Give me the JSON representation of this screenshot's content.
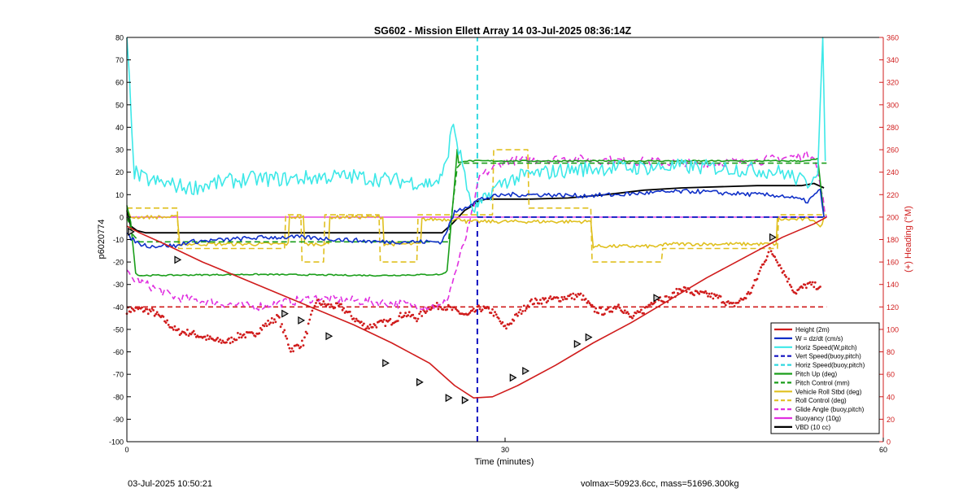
{
  "chart_data": {
    "type": "line",
    "title": "SG602 - Mission Ellett Array 14 03-Jul-2025 08:36:14Z",
    "xlabel": "Time (minutes)",
    "ylabel": "p6020774",
    "y2label": "(+) Heading (°M)",
    "xlim": [
      0,
      60
    ],
    "ylim": [
      -100,
      80
    ],
    "y2lim": [
      0,
      360
    ],
    "x_ticks": [
      0,
      30,
      60
    ],
    "y_ticks": [
      -100,
      -90,
      -80,
      -70,
      -60,
      -50,
      -40,
      -30,
      -20,
      -10,
      0,
      10,
      20,
      30,
      40,
      50,
      60,
      70,
      80
    ],
    "y2_ticks": [
      0,
      20,
      40,
      60,
      80,
      100,
      120,
      140,
      160,
      180,
      200,
      220,
      240,
      260,
      280,
      300,
      320,
      340,
      360
    ],
    "grid": false,
    "legend_position": "bottom-right",
    "vertical_lines": [
      {
        "x": 27.8,
        "color": "#1010c0",
        "style": "dashed",
        "ymin": -100,
        "ymax": 0
      },
      {
        "x": 27.8,
        "color": "#30d8e0",
        "style": "dashed",
        "ymin": 0,
        "ymax": 80
      }
    ],
    "series": [
      {
        "name": "Height (2m)",
        "color": "#d01c1c",
        "style": "solid",
        "width": 1.6,
        "x": [
          0,
          1,
          3,
          6,
          9,
          12,
          15,
          18,
          21,
          24,
          26,
          27.5,
          29,
          31,
          34,
          37,
          40,
          43,
          46,
          49,
          52,
          54.5,
          55.5
        ],
        "y": [
          -4,
          -7,
          -12,
          -20,
          -27,
          -34,
          -41,
          -48,
          -56,
          -65,
          -75,
          -80.5,
          -80,
          -75,
          -66,
          -56,
          -47,
          -37,
          -27,
          -18,
          -9,
          -3,
          0
        ],
        "markers_x": [
          0.3,
          4,
          12.5,
          13.8,
          16,
          20.5,
          23.2,
          25.5,
          26.8,
          30.6,
          31.6,
          35.7,
          36.6,
          42,
          51.2
        ],
        "markers_y": [
          -6.5,
          -19,
          -43,
          -46,
          -53,
          -65,
          -73.5,
          -80.5,
          -81.5,
          -71.5,
          -68.5,
          -56.5,
          -53.5,
          -36,
          -9
        ]
      },
      {
        "name": "W = dz/dt (cm/s)",
        "color": "#1030c8",
        "style": "solid",
        "width": 1.6,
        "x": [
          0,
          0.5,
          1,
          2,
          3,
          4,
          4.5,
          5,
          8,
          11,
          14,
          17,
          20,
          23,
          25,
          25.3,
          26,
          27,
          28,
          30,
          33,
          36,
          39,
          42,
          45,
          48,
          50,
          52,
          54,
          55,
          55.3
        ],
        "y": [
          -8,
          -10,
          -12,
          -13,
          -12.5,
          -13,
          -11.5,
          -11,
          -10,
          -9,
          -9,
          -10,
          -11,
          -11,
          -11,
          -7,
          2,
          5,
          8,
          10,
          10,
          9.5,
          10,
          11,
          11.5,
          10.5,
          10,
          9.5,
          7,
          12,
          0
        ],
        "noise": 1.0
      },
      {
        "name": "Horiz Speed(W,pitch)",
        "color": "#3de8e8",
        "style": "solid",
        "width": 1.6,
        "x": [
          0,
          0.2,
          0.4,
          0.6,
          1,
          2,
          3,
          5,
          8,
          10,
          13,
          16,
          18,
          20,
          22,
          23,
          24,
          25,
          25.5,
          25.9,
          26.3,
          26.8,
          27.3,
          28,
          29,
          30,
          32,
          35,
          38,
          41,
          44,
          47,
          50,
          52,
          54,
          54.8,
          55,
          55.2,
          55.4
        ],
        "y": [
          80,
          60,
          40,
          20,
          18,
          16,
          15,
          13,
          16,
          17,
          17,
          18,
          18,
          17,
          16,
          15.5,
          15,
          17,
          30,
          42,
          30,
          20,
          3,
          5,
          12,
          16,
          19,
          21,
          22,
          22,
          22.5,
          22,
          21,
          20,
          15,
          22,
          50,
          80,
          25
        ],
        "noise": 3.5
      },
      {
        "name": "Vert Speed(buoy,pitch)",
        "color": "#1010c0",
        "style": "dashed",
        "width": 1.8,
        "x": [
          27.8,
          55.5
        ],
        "y": [
          0,
          0
        ]
      },
      {
        "name": "Horiz Speed(buoy,pitch)",
        "color": "#30d8e0",
        "style": "dashed",
        "width": 1.8,
        "x": [
          27.8,
          55.5
        ],
        "y": [
          0,
          0
        ]
      },
      {
        "name": "Pitch Up (deg)",
        "color": "#1a9e1a",
        "style": "solid",
        "width": 1.6,
        "x": [
          0,
          0.3,
          0.7,
          1,
          10,
          20,
          25,
          25.4,
          26.1,
          26.2,
          26.3,
          26.7,
          30,
          40,
          50,
          54,
          54.8,
          55.3
        ],
        "y": [
          5,
          -2,
          -25,
          -26,
          -25.5,
          -26,
          -25.5,
          -24,
          22,
          30,
          24,
          25,
          25,
          25,
          25,
          25,
          26,
          0
        ],
        "noise": 0.3
      },
      {
        "name": "Pitch Control (mm)",
        "color": "#1a9e1a",
        "style": "dashed",
        "width": 1.6,
        "x": [
          0,
          0.5,
          1,
          25.5,
          26.2,
          26.5,
          55.5
        ],
        "y": [
          0,
          -8,
          -11,
          -11,
          22,
          24,
          24
        ]
      },
      {
        "name": "Vehicle Roll Stbd (deg)",
        "color": "#e0c020",
        "style": "solid",
        "width": 1.6,
        "x": [
          0,
          0.3,
          4,
          4.2,
          12.8,
          12.9,
          14,
          14.1,
          16,
          16.1,
          20.3,
          20.4,
          23.3,
          23.4,
          26.8,
          26.9,
          36.8,
          37,
          42.5,
          42.6,
          51.5,
          51.6,
          54.5,
          55,
          55.3
        ],
        "y": [
          3,
          0,
          0,
          -12,
          -12,
          0,
          0,
          -12,
          -12,
          0,
          0,
          -12,
          -12,
          -1,
          -1,
          -2,
          -2,
          -13,
          -13,
          -12,
          -12,
          -1,
          -1,
          -5,
          0
        ],
        "noise": 0.8
      },
      {
        "name": "Roll Control (deg)",
        "color": "#e0c020",
        "style": "dashed",
        "width": 1.6,
        "x": [
          0,
          4,
          4.1,
          12.5,
          12.6,
          13.8,
          13.9,
          15.6,
          15.7,
          20,
          20.1,
          23,
          23.1,
          29,
          29.1,
          31.8,
          31.9,
          36.8,
          36.9,
          42.4,
          42.5,
          51.6,
          51.7,
          55.5
        ],
        "y": [
          4,
          4,
          -14,
          -14,
          1,
          1,
          -20,
          -20,
          1,
          1,
          -20,
          -20,
          1,
          1,
          30,
          30,
          4,
          4,
          -20,
          -20,
          -14,
          -14,
          1,
          1
        ]
      },
      {
        "name": "Glide Angle (buoy,pitch)",
        "color": "#e030e0",
        "style": "dashed",
        "width": 1.6,
        "x": [
          0,
          0.3,
          4,
          10,
          15,
          20,
          25,
          25.5,
          26.3,
          27.2,
          28,
          30,
          35,
          40,
          45,
          50,
          54.5,
          55.5
        ],
        "y": [
          -25,
          -27,
          -36,
          -40,
          -36,
          -38,
          -40,
          -35,
          -20,
          -3,
          18,
          25,
          26,
          25,
          24,
          25,
          28,
          0
        ],
        "noise": 2
      },
      {
        "name": "Buoyancy (10g)",
        "color": "#e030e0",
        "style": "solid",
        "width": 1.4,
        "x": [
          0,
          55.5
        ],
        "y": [
          0,
          0
        ]
      },
      {
        "name": "VBD (10 cc)",
        "color": "#000000",
        "style": "solid",
        "width": 1.8,
        "x": [
          0,
          0.3,
          0.8,
          1.5,
          4.5,
          25,
          25.8,
          26.8,
          27.4,
          27.8,
          28.5,
          30,
          32,
          35,
          38,
          41,
          44,
          50,
          52,
          53.5,
          54.5,
          55.3
        ],
        "y": [
          3,
          -4,
          -6,
          -7,
          -7,
          -7,
          -3,
          3,
          5,
          7,
          8,
          8,
          8,
          8.5,
          10,
          12,
          13,
          14,
          14,
          14,
          15,
          13
        ]
      }
    ],
    "heading_series": {
      "color": "#d01c1c",
      "x": [
        0,
        1,
        2,
        3,
        3.5,
        4,
        5,
        7,
        8,
        9,
        10,
        11,
        12,
        13,
        14,
        15,
        16,
        17,
        18,
        19,
        20,
        21,
        22,
        23,
        24,
        25,
        26,
        27,
        28,
        29,
        30,
        31,
        32,
        33,
        34,
        35,
        36,
        37,
        38,
        39,
        40,
        41,
        42,
        43,
        44,
        45,
        46,
        47,
        48,
        49,
        49.5,
        50,
        50.5,
        51,
        51.5,
        52,
        53,
        54,
        55
      ],
      "y": [
        117,
        118,
        116,
        108,
        103,
        98,
        97,
        90,
        89,
        95,
        95,
        104,
        111,
        82,
        88,
        125,
        121,
        120,
        110,
        102,
        105,
        107,
        114,
        110,
        120,
        121,
        117,
        112,
        119,
        116,
        101,
        113,
        124,
        126,
        127,
        129,
        130,
        118,
        115,
        122,
        110,
        117,
        128,
        127,
        137,
        132,
        131,
        128,
        121,
        128,
        134,
        146,
        160,
        170,
        164,
        153,
        133,
        140,
        138
      ],
      "noise": 3,
      "reference": 120
    }
  },
  "footer": {
    "left": "03-Jul-2025 10:50:21",
    "right": "volmax=50923.6cc, mass=51696.300kg"
  }
}
